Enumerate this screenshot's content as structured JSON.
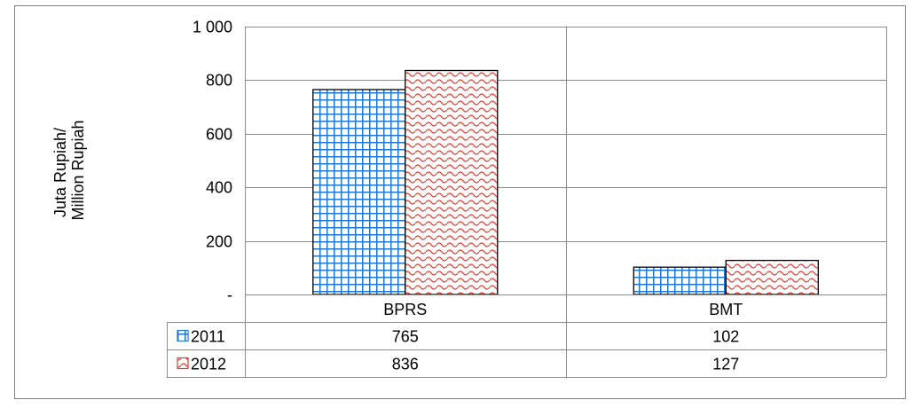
{
  "chart_data": {
    "type": "bar",
    "ylabel": [
      "Juta Rupiah/",
      "Million Rupiah"
    ],
    "categories": [
      "BPRS",
      "BMT"
    ],
    "series": [
      {
        "name": "2011",
        "values": [
          765,
          102
        ],
        "display_values": [
          "765",
          "102"
        ],
        "color": "#1f77d4",
        "pattern": "grid"
      },
      {
        "name": "2012",
        "values": [
          836,
          127
        ],
        "display_values": [
          "836",
          "127"
        ],
        "color": "#d9413a",
        "pattern": "wave"
      }
    ],
    "yticks": [
      {
        "value": 0,
        "label": "-"
      },
      {
        "value": 200,
        "label": "200"
      },
      {
        "value": 400,
        "label": "400"
      },
      {
        "value": 600,
        "label": "600"
      },
      {
        "value": 800,
        "label": "800"
      },
      {
        "value": 1000,
        "label": "1 000"
      }
    ],
    "ylim": [
      0,
      1000
    ],
    "grid": true,
    "legend": "data-table",
    "data_table": true
  }
}
